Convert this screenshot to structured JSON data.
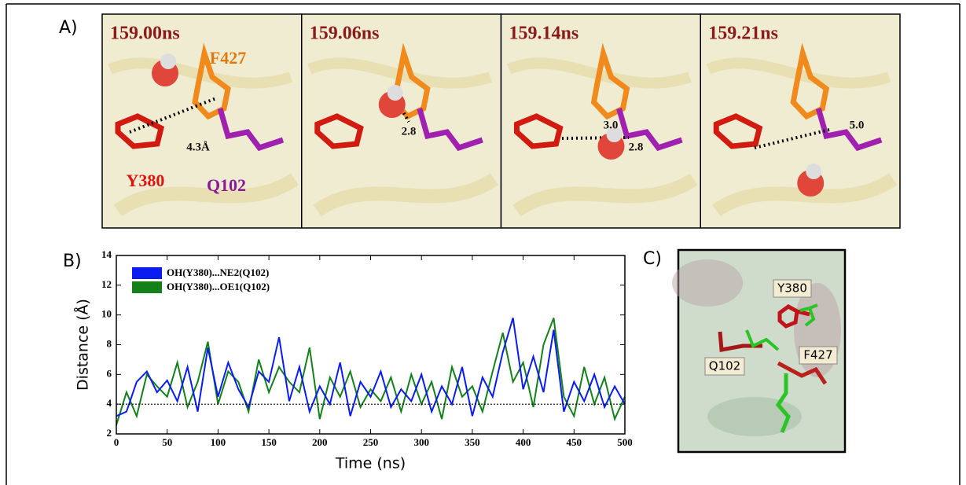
{
  "panel_a": {
    "label": "A)",
    "frames": [
      {
        "time": "159.00ns",
        "distances": [
          "4.3Å"
        ]
      },
      {
        "time": "159.06ns",
        "distances": [
          "2.8"
        ]
      },
      {
        "time": "159.14ns",
        "distances": [
          "3.0",
          "2.8"
        ]
      },
      {
        "time": "159.21ns",
        "distances": [
          "5.0"
        ]
      }
    ],
    "residues": [
      "F427",
      "Y380",
      "Q102"
    ]
  },
  "chart_data": {
    "type": "line",
    "panel_label": "B)",
    "xlabel": "Time (ns)",
    "ylabel": "Distance (Å)",
    "x": [
      0,
      10,
      20,
      30,
      40,
      50,
      60,
      70,
      80,
      90,
      100,
      110,
      120,
      130,
      140,
      150,
      160,
      170,
      180,
      190,
      200,
      210,
      220,
      230,
      240,
      250,
      260,
      270,
      280,
      290,
      300,
      310,
      320,
      330,
      340,
      350,
      360,
      370,
      380,
      390,
      400,
      410,
      420,
      430,
      440,
      450,
      460,
      470,
      480,
      490,
      500
    ],
    "series": [
      {
        "name": "OH(Y380)...NE2(Q102)",
        "color": "#0a1cf0",
        "values": [
          3.2,
          3.5,
          5.5,
          6.2,
          4.8,
          5.6,
          4.2,
          6.5,
          3.5,
          7.8,
          4.5,
          6.8,
          5.0,
          3.8,
          6.2,
          5.5,
          8.5,
          4.2,
          6.5,
          3.5,
          5.2,
          4.0,
          6.8,
          3.2,
          5.5,
          4.5,
          6.2,
          3.8,
          5.0,
          4.2,
          6.0,
          3.5,
          5.2,
          4.0,
          6.5,
          3.2,
          5.8,
          4.5,
          7.5,
          9.8,
          5.0,
          7.2,
          4.8,
          9.0,
          3.5,
          5.5,
          4.2,
          6.0,
          3.8,
          5.2,
          4.0
        ]
      },
      {
        "name": "OH(Y380)...OE1(Q102)",
        "color": "#14801a",
        "values": [
          2.6,
          4.8,
          3.2,
          6.0,
          5.2,
          4.5,
          6.8,
          3.8,
          5.5,
          8.2,
          4.0,
          6.2,
          5.5,
          3.5,
          7.0,
          4.8,
          6.5,
          5.5,
          4.8,
          7.8,
          3.0,
          5.8,
          4.5,
          6.2,
          3.8,
          5.0,
          4.2,
          5.8,
          3.5,
          6.0,
          4.0,
          5.5,
          3.0,
          6.5,
          4.5,
          5.2,
          3.5,
          6.2,
          8.8,
          5.5,
          6.8,
          3.8,
          8.0,
          9.8,
          4.5,
          3.2,
          6.5,
          4.0,
          5.8,
          3.0,
          4.5
        ]
      }
    ],
    "reference_line": 4,
    "xlim": [
      0,
      500
    ],
    "xticks": [
      0,
      50,
      100,
      150,
      200,
      250,
      300,
      350,
      400,
      450,
      500
    ],
    "ylim": [
      2,
      14
    ],
    "yticks": [
      2,
      4,
      6,
      8,
      10,
      12,
      14
    ]
  },
  "panel_c": {
    "label": "C)",
    "residues": [
      "Y380",
      "F427",
      "Q102"
    ]
  }
}
